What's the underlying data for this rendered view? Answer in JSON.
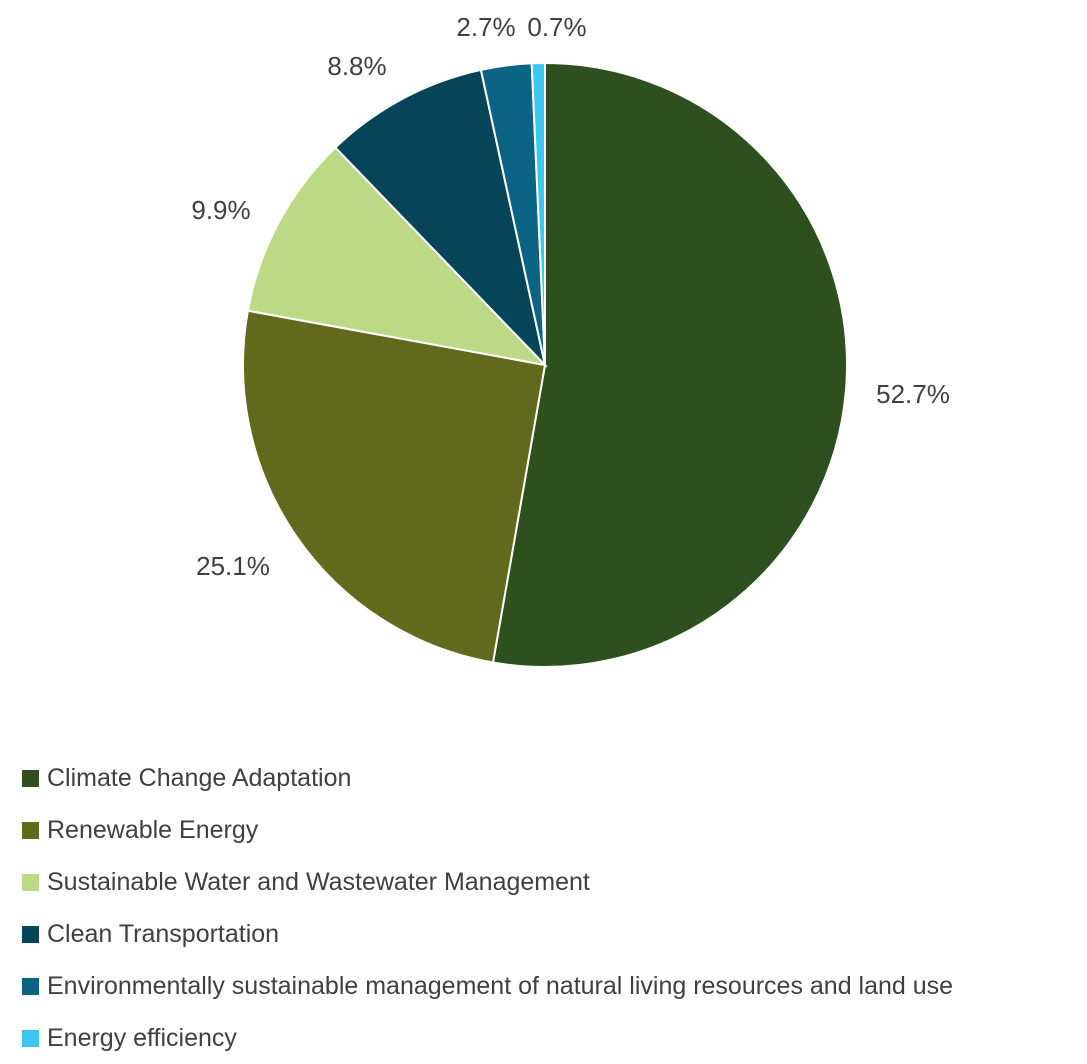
{
  "chart_data": {
    "type": "pie",
    "categories": [
      "Climate Change Adaptation",
      "Renewable Energy",
      "Sustainable Water and Wastewater Management",
      "Clean Transportation",
      "Environmentally sustainable management of natural living resources and land use",
      "Energy efficiency"
    ],
    "values": [
      52.7,
      25.1,
      9.9,
      8.8,
      2.7,
      0.7
    ],
    "labels": [
      "52.7%",
      "25.1%",
      "9.9%",
      "8.8%",
      "2.7%",
      "0.7%"
    ],
    "colors": [
      "#2d501e",
      "#616a1c",
      "#bcda85",
      "#054459",
      "#0b6483",
      "#3ec6f2"
    ],
    "legend_position": "bottom",
    "title": ""
  }
}
